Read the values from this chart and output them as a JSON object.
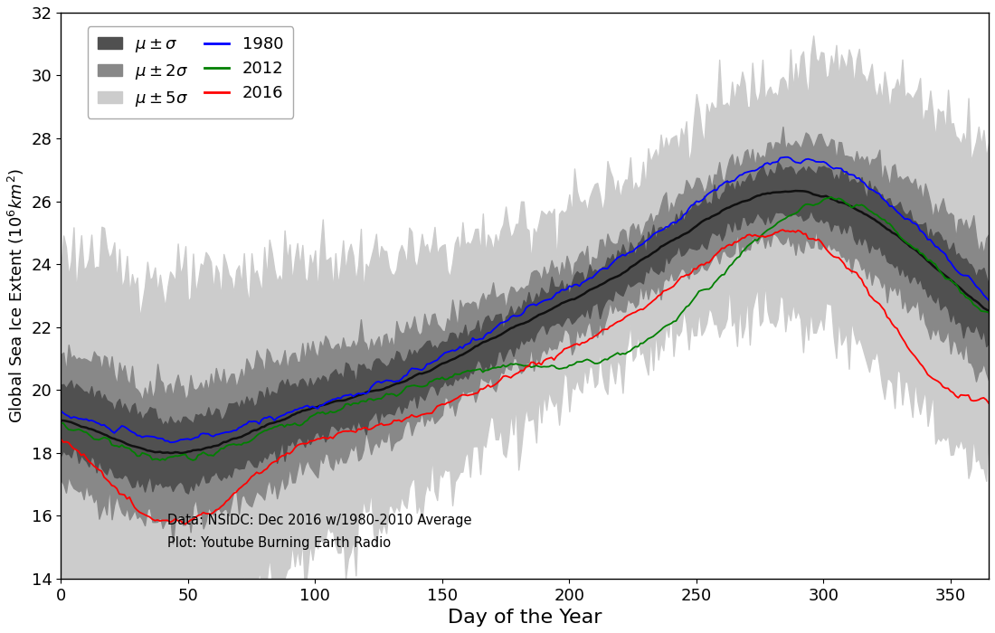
{
  "xlabel": "Day of the Year",
  "ylabel": "Global Sea Ice Extent ($10^{6}km^{2}$)",
  "xlim": [
    0,
    365
  ],
  "ylim": [
    14,
    32
  ],
  "yticks": [
    14,
    16,
    18,
    20,
    22,
    24,
    26,
    28,
    30,
    32
  ],
  "xticks": [
    0,
    50,
    100,
    150,
    200,
    250,
    300,
    350
  ],
  "color_5sigma": "#cccccc",
  "color_2sigma": "#888888",
  "color_1sigma": "#505050",
  "color_mean": "#101010",
  "color_1980": "#0000ff",
  "color_2012": "#008000",
  "color_2016": "#ff0000",
  "annotation1": "Data: NSIDC: Dec 2016 w/1980-2010 Average",
  "annotation2": "Plot: Youtube Burning Earth Radio",
  "figsize": [
    11.0,
    7.0
  ],
  "dpi": 100
}
